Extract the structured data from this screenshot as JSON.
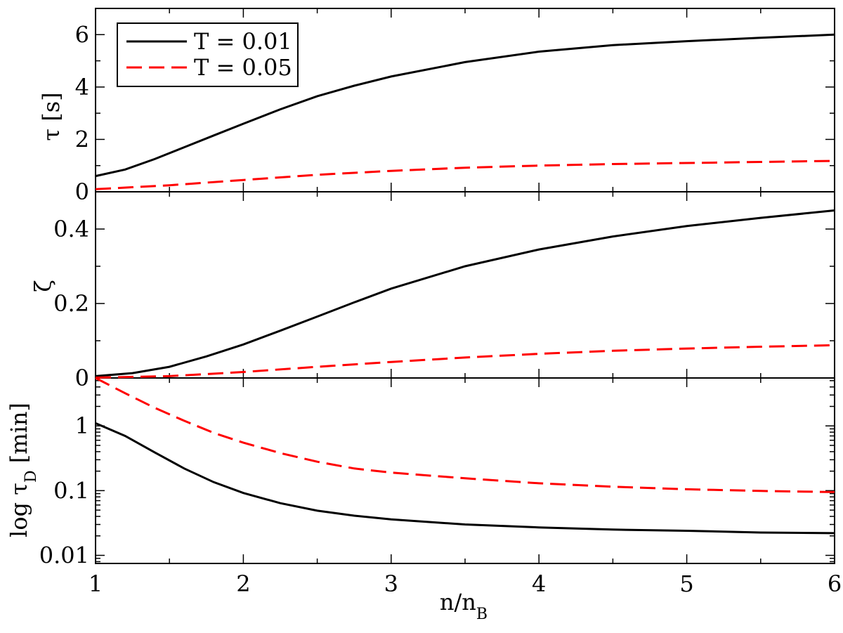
{
  "chart_data": {
    "type": "line",
    "shared_x": {
      "label": "n/n",
      "label_sub": "B",
      "range": [
        1,
        6
      ],
      "ticks": [
        1,
        2,
        3,
        4,
        5,
        6
      ]
    },
    "legend": {
      "placement": "top-left",
      "entries": [
        {
          "label": "T = 0.01",
          "color": "#000000",
          "dash": "solid"
        },
        {
          "label": "T = 0.05",
          "color": "#ff0000",
          "dash": "dashed"
        }
      ]
    },
    "panels": [
      {
        "id": "tau",
        "ylabel": "τ [s]",
        "scale": "linear",
        "ylim": [
          0,
          7
        ],
        "yticks": [
          0,
          2,
          4,
          6
        ],
        "series": [
          {
            "name": "T = 0.01",
            "x": [
              1,
              1.2,
              1.4,
              1.6,
              1.8,
              2,
              2.25,
              2.5,
              2.75,
              3,
              3.5,
              4,
              4.5,
              5,
              5.5,
              6
            ],
            "y": [
              0.6,
              0.85,
              1.25,
              1.7,
              2.15,
              2.6,
              3.15,
              3.65,
              4.05,
              4.4,
              4.95,
              5.35,
              5.6,
              5.75,
              5.88,
              6.0
            ]
          },
          {
            "name": "T = 0.05",
            "x": [
              1,
              1.5,
              2,
              2.5,
              3,
              3.5,
              4,
              4.5,
              5,
              5.5,
              6
            ],
            "y": [
              0.1,
              0.25,
              0.45,
              0.65,
              0.8,
              0.92,
              1.0,
              1.06,
              1.1,
              1.14,
              1.18
            ]
          }
        ]
      },
      {
        "id": "zeta",
        "ylabel": "ζ",
        "scale": "linear",
        "ylim": [
          0,
          0.5
        ],
        "yticks": [
          0,
          0.2,
          0.4
        ],
        "series": [
          {
            "name": "T = 0.01",
            "x": [
              1,
              1.25,
              1.5,
              1.75,
              2,
              2.25,
              2.5,
              2.75,
              3,
              3.5,
              4,
              4.5,
              5,
              5.5,
              6
            ],
            "y": [
              0.005,
              0.013,
              0.03,
              0.058,
              0.09,
              0.127,
              0.165,
              0.203,
              0.24,
              0.3,
              0.345,
              0.38,
              0.408,
              0.43,
              0.45
            ]
          },
          {
            "name": "T = 0.05",
            "x": [
              1,
              1.5,
              2,
              2.5,
              3,
              3.5,
              4,
              4.5,
              5,
              5.5,
              6
            ],
            "y": [
              0.001,
              0.005,
              0.016,
              0.03,
              0.043,
              0.055,
              0.065,
              0.073,
              0.079,
              0.084,
              0.088
            ]
          }
        ]
      },
      {
        "id": "tauD",
        "ylabel": "log τ",
        "ylabel_sub": "D",
        "ylabel_suffix": " [min]",
        "scale": "log",
        "ylim": [
          0.0075,
          5.5
        ],
        "yticks": [
          0.01,
          0.1,
          1
        ],
        "ytick_labels": [
          "0.01",
          "0.1",
          "1"
        ],
        "series": [
          {
            "name": "T = 0.01",
            "x": [
              1,
              1.2,
              1.4,
              1.6,
              1.8,
              2,
              2.25,
              2.5,
              2.75,
              3,
              3.5,
              4,
              4.5,
              5,
              5.5,
              6
            ],
            "y": [
              1.1,
              0.7,
              0.39,
              0.22,
              0.135,
              0.092,
              0.064,
              0.049,
              0.041,
              0.036,
              0.03,
              0.027,
              0.025,
              0.024,
              0.0225,
              0.022
            ]
          },
          {
            "name": "T = 0.05",
            "x": [
              1,
              1.2,
              1.4,
              1.6,
              1.8,
              2,
              2.25,
              2.5,
              2.75,
              3,
              3.5,
              4,
              4.5,
              5,
              5.5,
              6
            ],
            "y": [
              5.5,
              3.2,
              1.9,
              1.2,
              0.78,
              0.55,
              0.38,
              0.28,
              0.22,
              0.19,
              0.155,
              0.13,
              0.115,
              0.105,
              0.099,
              0.095
            ]
          }
        ]
      }
    ]
  }
}
